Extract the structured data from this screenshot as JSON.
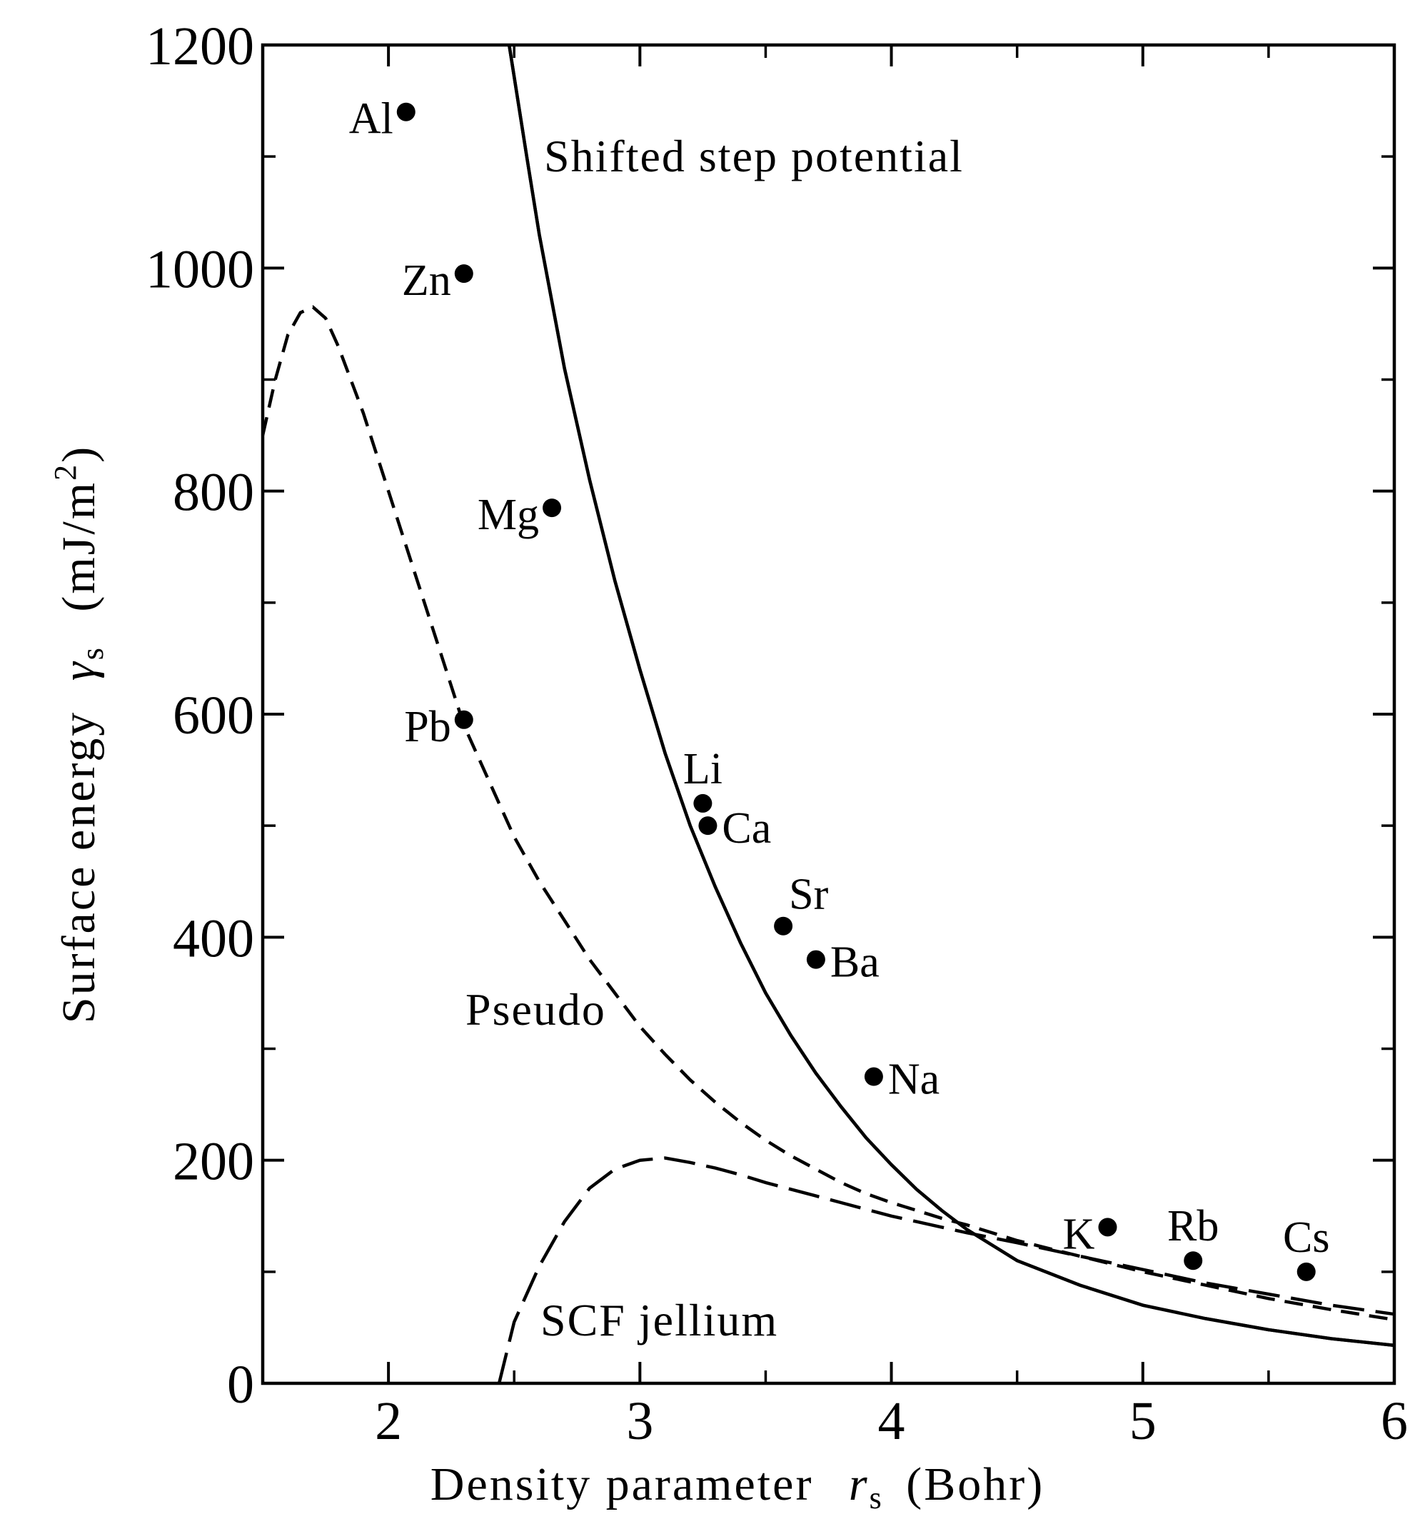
{
  "chart_data": {
    "type": "line",
    "title": "",
    "xlabel": {
      "prefix": "Density parameter",
      "symbol": "r",
      "sub": "s",
      "suffix": "(Bohr)"
    },
    "ylabel": {
      "prefix": "Surface energy",
      "symbol": "γ",
      "sub": "s",
      "suffix": "(mJ/m",
      "sup": "2",
      "close": ")"
    },
    "xlim": [
      1.5,
      6
    ],
    "ylim": [
      0,
      1200
    ],
    "xticks": [
      2,
      3,
      4,
      5,
      6
    ],
    "yticks": [
      0,
      200,
      400,
      600,
      800,
      1000,
      1200
    ],
    "grid": false,
    "series": [
      {
        "name": "Shifted step potential",
        "style": "double-solid",
        "x": [
          2.48,
          2.55,
          2.6,
          2.7,
          2.8,
          2.9,
          3.0,
          3.1,
          3.2,
          3.3,
          3.4,
          3.5,
          3.6,
          3.7,
          3.8,
          3.9,
          4.0,
          4.1,
          4.2,
          4.3,
          4.5,
          4.75,
          5.0,
          5.25,
          5.5,
          5.75,
          6.0
        ],
        "y": [
          1200,
          1100,
          1030,
          910,
          810,
          720,
          640,
          565,
          500,
          445,
          395,
          350,
          312,
          278,
          248,
          220,
          196,
          174,
          155,
          138,
          110,
          88,
          70,
          58,
          48,
          40,
          34
        ]
      },
      {
        "name": "Pseudo",
        "style": "short-dash",
        "x": [
          1.5,
          1.55,
          1.6,
          1.65,
          1.7,
          1.75,
          1.8,
          1.9,
          2.0,
          2.1,
          2.2,
          2.3,
          2.4,
          2.5,
          2.6,
          2.7,
          2.8,
          2.9,
          3.0,
          3.1,
          3.2,
          3.3,
          3.4,
          3.5,
          3.6,
          3.7,
          3.8,
          3.9,
          4.0,
          4.1,
          4.2,
          4.3,
          4.5,
          4.75,
          5.0,
          5.25,
          5.5,
          5.75,
          6.0
        ],
        "y": [
          850,
          900,
          940,
          960,
          965,
          955,
          930,
          870,
          800,
          730,
          660,
          590,
          540,
          490,
          450,
          415,
          380,
          350,
          320,
          295,
          272,
          252,
          234,
          218,
          204,
          192,
          180,
          170,
          162,
          155,
          148,
          142,
          128,
          114,
          100,
          88,
          76,
          66,
          57
        ]
      },
      {
        "name": "SCF jellium",
        "style": "long-dash",
        "x": [
          2.44,
          2.5,
          2.6,
          2.7,
          2.8,
          2.9,
          3.0,
          3.1,
          3.2,
          3.3,
          3.4,
          3.5,
          3.6,
          3.7,
          3.8,
          3.9,
          4.0,
          4.1,
          4.2,
          4.3,
          4.5,
          4.75,
          5.0,
          5.25,
          5.5,
          5.75,
          6.0
        ],
        "y": [
          0,
          55,
          105,
          145,
          175,
          192,
          200,
          202,
          198,
          193,
          187,
          180,
          174,
          168,
          162,
          156,
          150,
          145,
          140,
          135,
          126,
          114,
          102,
          90,
          80,
          70,
          62
        ]
      }
    ],
    "curve_labels": [
      "Shifted step potential",
      "Pseudo",
      "SCF jellium"
    ],
    "points": [
      {
        "label": "Al",
        "x": 2.07,
        "y": 1140,
        "pos": "left"
      },
      {
        "label": "Zn",
        "x": 2.3,
        "y": 995,
        "pos": "left"
      },
      {
        "label": "Mg",
        "x": 2.65,
        "y": 785,
        "pos": "left"
      },
      {
        "label": "Pb",
        "x": 2.3,
        "y": 595,
        "pos": "left"
      },
      {
        "label": "Li",
        "x": 3.25,
        "y": 520,
        "pos": "above"
      },
      {
        "label": "Ca",
        "x": 3.27,
        "y": 500,
        "pos": "right"
      },
      {
        "label": "Sr",
        "x": 3.57,
        "y": 410,
        "pos": "above-right"
      },
      {
        "label": "Ba",
        "x": 3.7,
        "y": 380,
        "pos": "right"
      },
      {
        "label": "Na",
        "x": 3.93,
        "y": 275,
        "pos": "right"
      },
      {
        "label": "K",
        "x": 4.86,
        "y": 140,
        "pos": "left"
      },
      {
        "label": "Rb",
        "x": 5.2,
        "y": 110,
        "pos": "above"
      },
      {
        "label": "Cs",
        "x": 5.65,
        "y": 100,
        "pos": "above"
      }
    ]
  }
}
